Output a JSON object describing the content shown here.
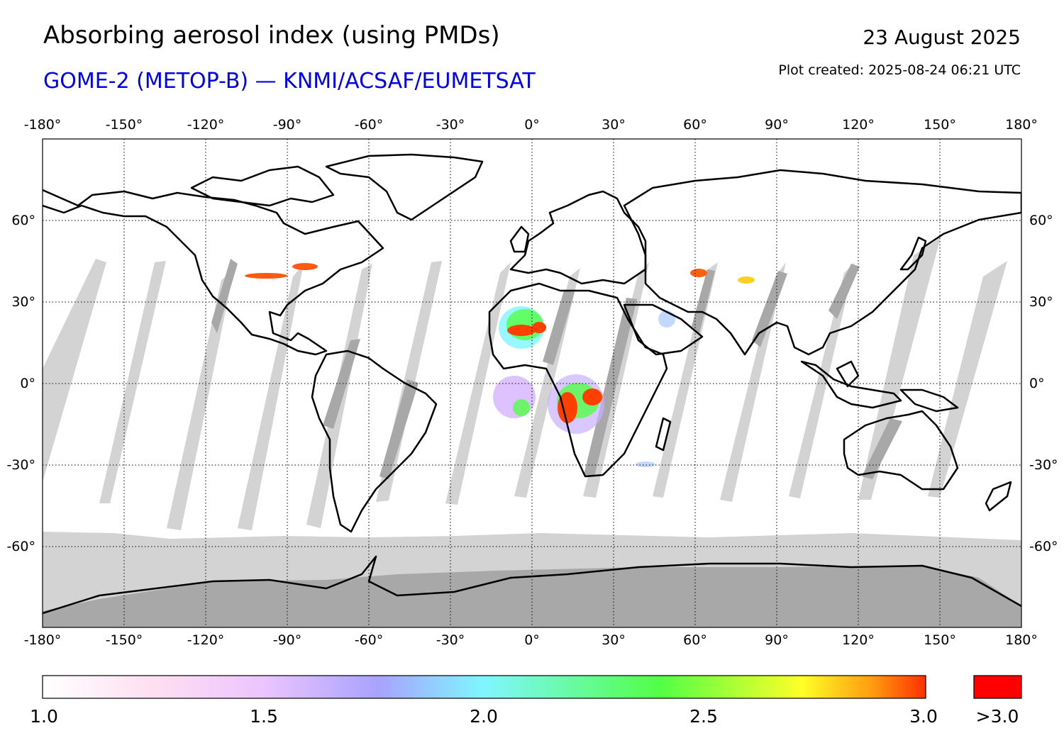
{
  "header": {
    "title": "Absorbing aerosol index (using PMDs)",
    "subtitle": "GOME-2 (METOP-B) — KNMI/ACSAF/EUMETSAT",
    "date": "23 August 2025",
    "created": "Plot created: 2025-08-24 06:21 UTC"
  },
  "map": {
    "projection": "equirectangular",
    "lon_range": [
      -180,
      180
    ],
    "lat_range": [
      -90,
      90
    ],
    "lon_ticks": [
      "-180°",
      "-150°",
      "-120°",
      "-90°",
      "-60°",
      "-30°",
      "0°",
      "30°",
      "60°",
      "90°",
      "120°",
      "150°",
      "180°"
    ],
    "lat_ticks": [
      "60°",
      "30°",
      "0°",
      "-30°",
      "-60°"
    ],
    "grid": "dotted",
    "colors": {
      "no_data_light": "#d3d3d3",
      "no_data_dark": "#a8a8a8",
      "coastline": "#000000",
      "ocean_land": "#ffffff"
    }
  },
  "colorbar": {
    "ticks": [
      "1.0",
      "1.5",
      "2.0",
      "2.5",
      "3.0"
    ],
    "overflow_label": ">3.0",
    "overflow_color": "#ff0000",
    "gradient": [
      "#ffffff",
      "#ffd6f0",
      "#d0a8ff",
      "#9aa0ff",
      "#7ff4ff",
      "#52ff47",
      "#ffff2a",
      "#ff8a10",
      "#ff3000"
    ]
  }
}
